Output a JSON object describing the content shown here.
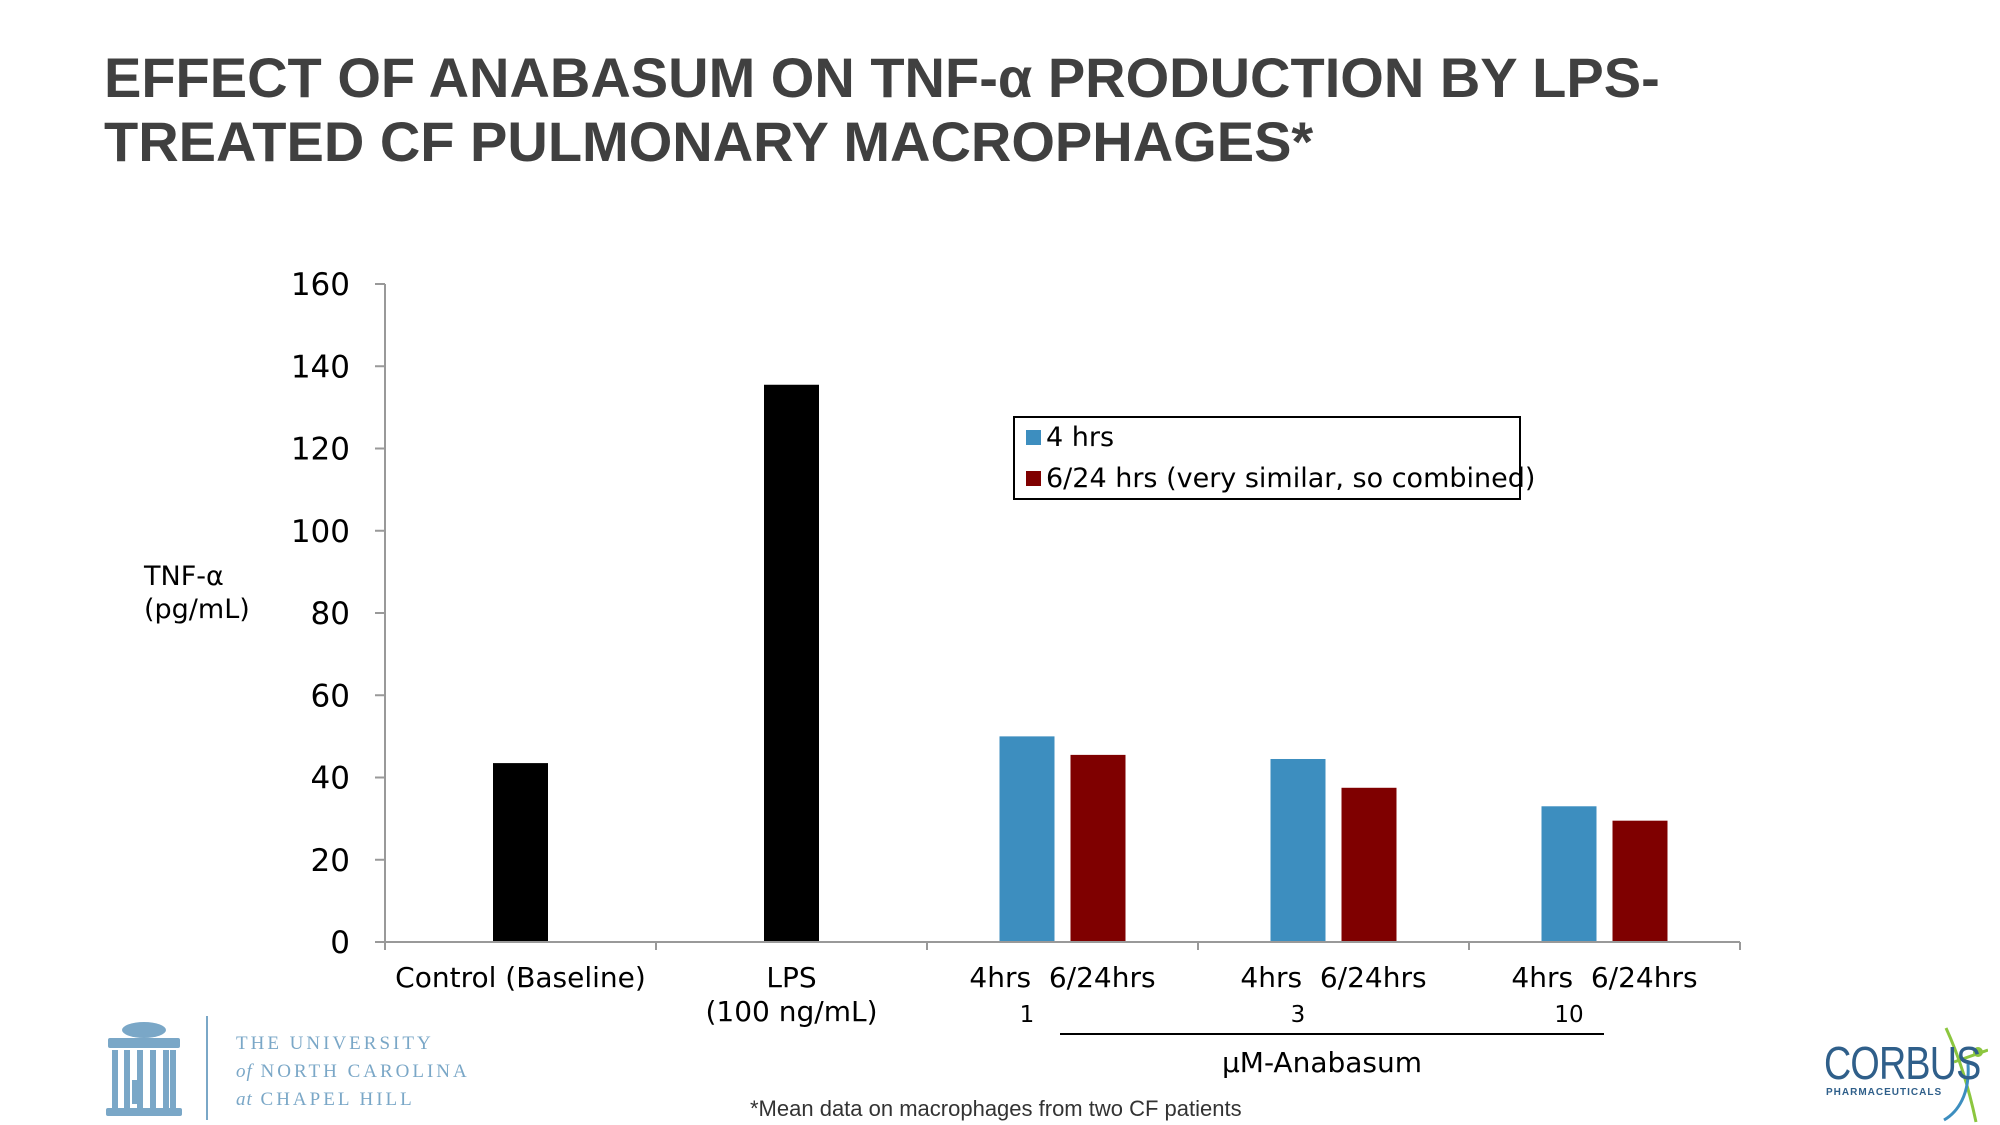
{
  "slide": {
    "title": "EFFECT OF ANABASUM ON TNF-α PRODUCTION BY LPS-TREATED CF PULMONARY MACROPHAGES*",
    "footnote": "*Mean data on macrophages from two CF patients"
  },
  "logos": {
    "unc": {
      "line1": "THE UNIVERSITY",
      "line2_italic": "of",
      "line2": "NORTH CAROLINA",
      "line3_italic": "at",
      "line3": "CHAPEL HILL"
    },
    "corbus": {
      "name": "CORBUS",
      "sub": "PHARMACEUTICALS",
      "color": "#2f5f8a",
      "accent": "#8cc63f"
    }
  },
  "chart_data": {
    "type": "bar",
    "ylabel_line1": "TNF-α",
    "ylabel_line2": "(pg/mL)",
    "ylim": [
      0,
      160
    ],
    "yticks": [
      "0",
      "20",
      "40",
      "60",
      "80",
      "100",
      "120",
      "140",
      "160"
    ],
    "legend": {
      "placement": "top-right",
      "entries": [
        {
          "name": "4 hrs",
          "color": "#3d8ebf"
        },
        {
          "name": "6/24 hrs (very similar, so combined)",
          "color": "#7f0000"
        }
      ]
    },
    "groups": [
      {
        "label": "Control (Baseline)",
        "label2": "",
        "bars": [
          {
            "value": 43.5,
            "color": "#000000"
          }
        ]
      },
      {
        "label": "LPS",
        "label2": "(100 ng/mL)",
        "bars": [
          {
            "value": 135.5,
            "color": "#000000"
          }
        ]
      },
      {
        "label": "4hrs  6/24hrs",
        "label2": "1",
        "bars": [
          {
            "value": 50,
            "color": "#3d8ebf"
          },
          {
            "value": 45.5,
            "color": "#7f0000"
          }
        ]
      },
      {
        "label": "4hrs  6/24hrs",
        "label2": "3",
        "bars": [
          {
            "value": 44.5,
            "color": "#3d8ebf"
          },
          {
            "value": 37.5,
            "color": "#7f0000"
          }
        ]
      },
      {
        "label": "4hrs  6/24hrs",
        "label2": "10",
        "bars": [
          {
            "value": 33,
            "color": "#3d8ebf"
          },
          {
            "value": 29.5,
            "color": "#7f0000"
          }
        ]
      }
    ],
    "bracket_label": "μM-Anabasum"
  }
}
